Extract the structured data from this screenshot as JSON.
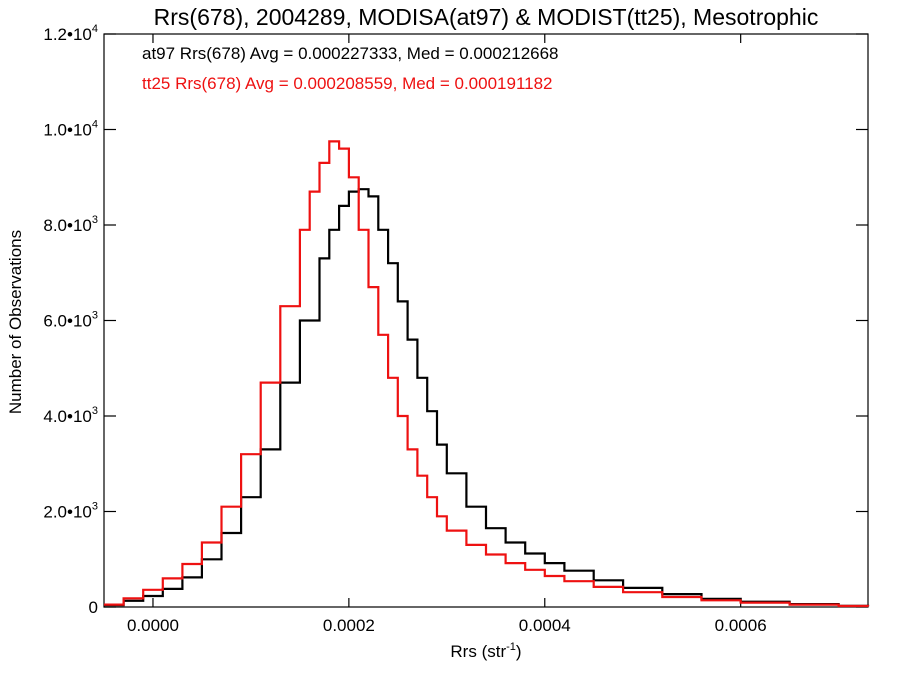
{
  "chart_data": {
    "type": "line",
    "title": "Rrs(678), 2004289, MODISA(at97) & MODIST(tt25), Mesotrophic",
    "xlabel": {
      "base": "Rrs (str",
      "sup": "-1",
      "end": ")"
    },
    "ylabel": "Number of Observations",
    "xlim": [
      -5e-05,
      0.00073
    ],
    "ylim": [
      0,
      12000
    ],
    "xticks": [
      {
        "value": 0.0,
        "label": "0.0000"
      },
      {
        "value": 0.0002,
        "label": "0.0002"
      },
      {
        "value": 0.0004,
        "label": "0.0004"
      },
      {
        "value": 0.0006,
        "label": "0.0006"
      }
    ],
    "yticks": [
      {
        "value": 0,
        "base": "0",
        "sup": ""
      },
      {
        "value": 2000,
        "base": "2.0•10",
        "sup": "3"
      },
      {
        "value": 4000,
        "base": "4.0•10",
        "sup": "3"
      },
      {
        "value": 6000,
        "base": "6.0•10",
        "sup": "3"
      },
      {
        "value": 8000,
        "base": "8.0•10",
        "sup": "3"
      },
      {
        "value": 10000,
        "base": "1.0•10",
        "sup": "4"
      },
      {
        "value": 12000,
        "base": "1.2•10",
        "sup": "4"
      }
    ],
    "annotations": [
      {
        "text": "at97 Rrs(678) Avg = 0.000227333, Med = 0.000212668",
        "color": "#000000"
      },
      {
        "text": "tt25 Rrs(678) Avg = 0.000208559, Med = 0.000191182",
        "color": "#ee1111"
      }
    ],
    "series": [
      {
        "color": "#000000",
        "x": [
          -5e-05,
          -3e-05,
          -1e-05,
          1e-05,
          3e-05,
          5e-05,
          7e-05,
          9e-05,
          0.00011,
          0.00013,
          0.00015,
          0.00017,
          0.00018,
          0.00019,
          0.0002,
          0.00021,
          0.00022,
          0.00023,
          0.00024,
          0.00025,
          0.00026,
          0.00027,
          0.00028,
          0.00029,
          0.0003,
          0.00032,
          0.00034,
          0.00036,
          0.00038,
          0.0004,
          0.00042,
          0.00045,
          0.00048,
          0.00052,
          0.00056,
          0.0006,
          0.00065,
          0.0007,
          0.00073
        ],
        "y": [
          40,
          130,
          230,
          380,
          620,
          1000,
          1550,
          2300,
          3300,
          4700,
          6000,
          7300,
          7900,
          8400,
          8700,
          8750,
          8600,
          7900,
          7200,
          6400,
          5600,
          4800,
          4100,
          3400,
          2800,
          2100,
          1650,
          1350,
          1120,
          920,
          760,
          560,
          400,
          270,
          170,
          110,
          60,
          25,
          15
        ]
      },
      {
        "color": "#ee1111",
        "x": [
          -5e-05,
          -3e-05,
          -1e-05,
          1e-05,
          3e-05,
          5e-05,
          7e-05,
          9e-05,
          0.00011,
          0.00013,
          0.00015,
          0.00016,
          0.00017,
          0.00018,
          0.00019,
          0.0002,
          0.00021,
          0.00022,
          0.00023,
          0.00024,
          0.00025,
          0.00026,
          0.00027,
          0.00028,
          0.00029,
          0.0003,
          0.00032,
          0.00034,
          0.00036,
          0.00038,
          0.0004,
          0.00042,
          0.00045,
          0.00048,
          0.00052,
          0.00056,
          0.0006,
          0.00065,
          0.0007,
          0.00073
        ],
        "y": [
          50,
          180,
          360,
          600,
          900,
          1350,
          2100,
          3200,
          4700,
          6300,
          7900,
          8700,
          9300,
          9750,
          9600,
          9000,
          7900,
          6700,
          5700,
          4800,
          4000,
          3300,
          2750,
          2300,
          1900,
          1600,
          1300,
          1100,
          920,
          780,
          650,
          540,
          420,
          310,
          210,
          140,
          90,
          50,
          20,
          10
        ]
      }
    ]
  }
}
